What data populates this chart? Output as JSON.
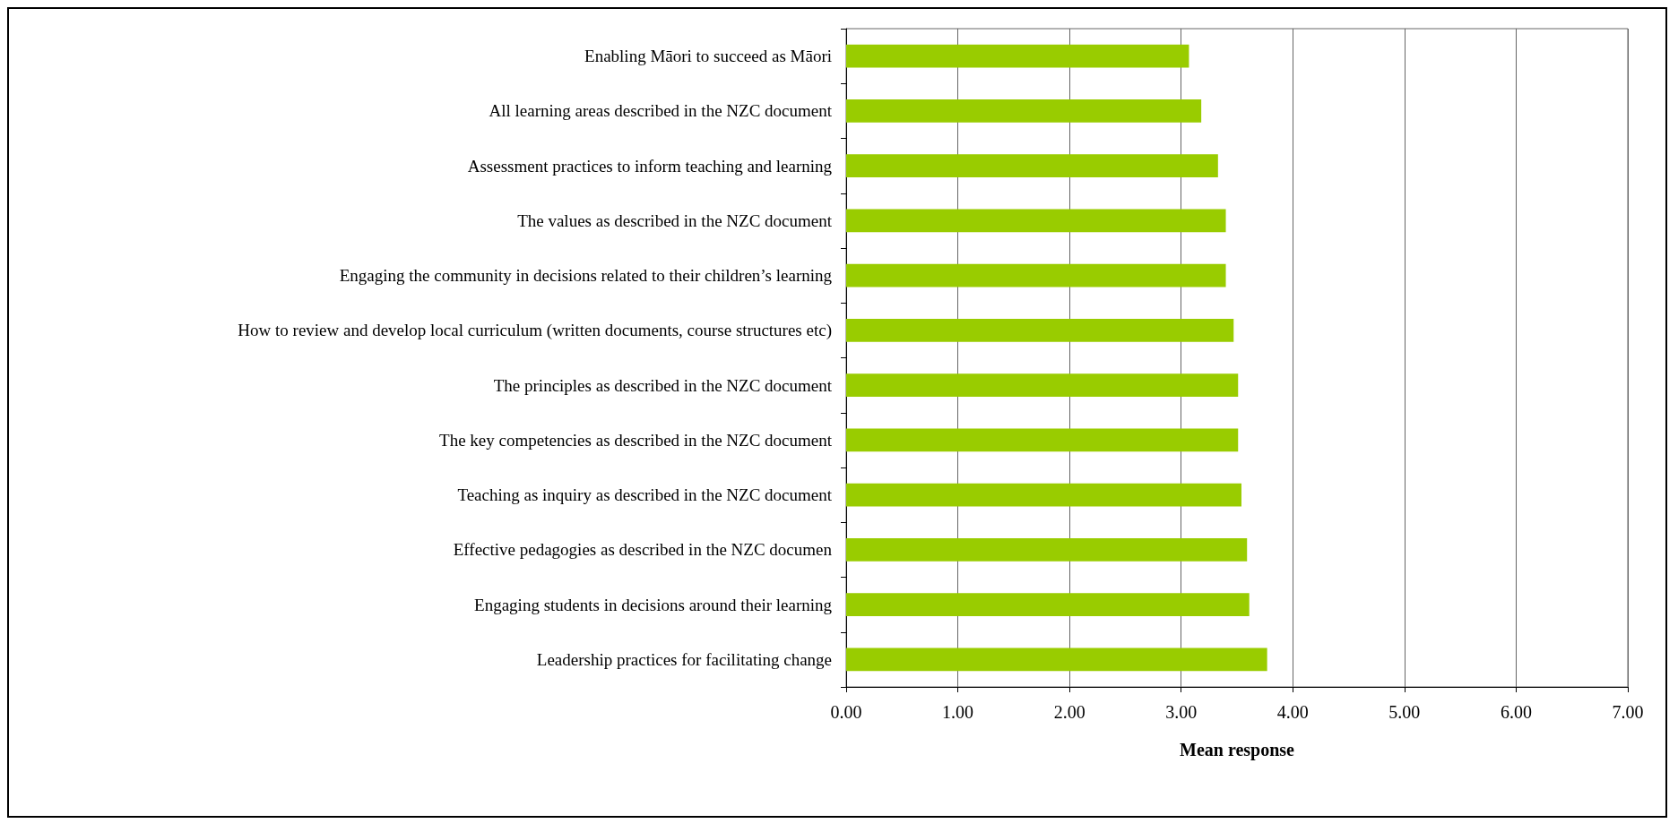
{
  "chart_data": {
    "type": "bar",
    "orientation": "horizontal",
    "xlabel": "Mean response",
    "categories": [
      "Enabling Māori to succeed as Māori",
      "All learning areas described in the NZC document",
      "Assessment practices to inform teaching and learning",
      "The values as described in the NZC document",
      "Engaging the community in decisions related to their children’s learning",
      "How to review and develop local curriculum (written documents, course structures etc)",
      "The principles as described in the NZC document",
      "The key competencies as described in the NZC document",
      "Teaching as inquiry as described in the NZC document",
      "Effective pedagogies as described in the NZC documen",
      "Engaging students in decisions around their learning",
      "Leadership practices for facilitating change"
    ],
    "values": [
      3.07,
      3.18,
      3.33,
      3.4,
      3.4,
      3.47,
      3.51,
      3.51,
      3.54,
      3.59,
      3.61,
      3.77
    ],
    "color": "#99cc00",
    "xlim": [
      0,
      7
    ],
    "xticks": [
      {
        "value": 0,
        "label": "0.00"
      },
      {
        "value": 1,
        "label": "1.00"
      },
      {
        "value": 2,
        "label": "2.00"
      },
      {
        "value": 3,
        "label": "3.00"
      },
      {
        "value": 4,
        "label": "4.00"
      },
      {
        "value": 5,
        "label": "5.00"
      },
      {
        "value": 6,
        "label": "6.00"
      },
      {
        "value": 7,
        "label": "7.00"
      }
    ],
    "grid": "x"
  }
}
